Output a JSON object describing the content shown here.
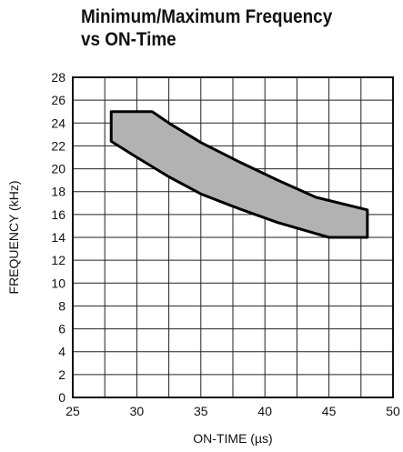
{
  "chart_data": {
    "type": "area",
    "title_lines": [
      "Minimum/Maximum Frequency",
      "vs ON-Time"
    ],
    "xlabel": "ON-TIME (µs)",
    "ylabel": "FREQUENCY (kHz)",
    "xlim": [
      25,
      50
    ],
    "ylim": [
      0,
      28
    ],
    "x_ticks": [
      "25",
      "30",
      "35",
      "40",
      "45",
      "50"
    ],
    "y_ticks": [
      "0",
      "2",
      "4",
      "6",
      "8",
      "10",
      "12",
      "14",
      "16",
      "18",
      "20",
      "22",
      "24",
      "26",
      "28"
    ],
    "grid": true,
    "region": {
      "fill_color": "#b2b2b2",
      "upper": [
        [
          28,
          25
        ],
        [
          31.2,
          25
        ],
        [
          32.5,
          24
        ],
        [
          35,
          22.3
        ],
        [
          38,
          20.6
        ],
        [
          41,
          19.0
        ],
        [
          44,
          17.5
        ],
        [
          48,
          16.4
        ]
      ],
      "lower": [
        [
          28,
          22.4
        ],
        [
          30,
          21.0
        ],
        [
          32.5,
          19.3
        ],
        [
          35,
          17.8
        ],
        [
          38,
          16.5
        ],
        [
          41,
          15.3
        ],
        [
          45,
          14.0
        ],
        [
          48,
          14.0
        ]
      ]
    }
  }
}
